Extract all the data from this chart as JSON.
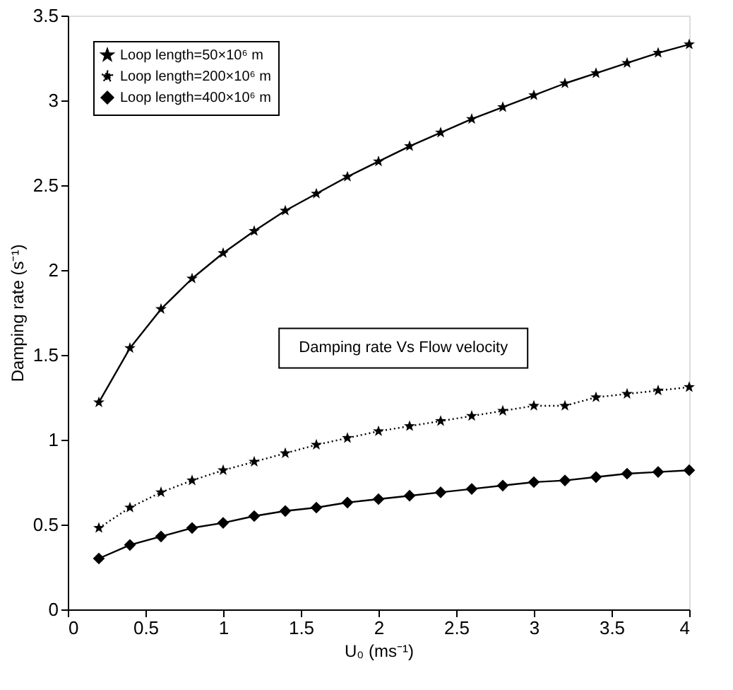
{
  "chart_data": {
    "type": "line",
    "xlabel": "U₀ (ms⁻¹)",
    "ylabel": "Damping rate (s⁻¹)",
    "x": [
      0.2,
      0.4,
      0.6,
      0.8,
      1.0,
      1.2,
      1.4,
      1.6,
      1.8,
      2.0,
      2.2,
      2.4,
      2.6,
      2.8,
      3.0,
      3.2,
      3.4,
      3.6,
      3.8,
      4.0
    ],
    "series": [
      {
        "name": "Loop length=50×10⁶ m",
        "color": "#000000",
        "marker": "star",
        "line_style": "solid",
        "values": [
          1.22,
          1.54,
          1.77,
          1.95,
          2.1,
          2.23,
          2.35,
          2.45,
          2.55,
          2.64,
          2.73,
          2.81,
          2.89,
          2.96,
          3.03,
          3.1,
          3.16,
          3.22,
          3.28,
          3.33
        ]
      },
      {
        "name": "Loop length=200×10⁶ m",
        "color": "#000000",
        "marker": "star",
        "line_style": "dotted",
        "values": [
          0.48,
          0.6,
          0.69,
          0.76,
          0.82,
          0.87,
          0.92,
          0.97,
          1.01,
          1.05,
          1.08,
          1.11,
          1.14,
          1.17,
          1.2,
          1.2,
          1.25,
          1.27,
          1.29,
          1.31
        ]
      },
      {
        "name": "Loop length=400×10⁶ m",
        "color": "#000000",
        "marker": "diamond",
        "line_style": "solid",
        "values": [
          0.3,
          0.38,
          0.43,
          0.48,
          0.51,
          0.55,
          0.58,
          0.6,
          0.63,
          0.65,
          0.67,
          0.69,
          0.71,
          0.73,
          0.75,
          0.76,
          0.78,
          0.8,
          0.81,
          0.82
        ]
      }
    ],
    "annotations": [
      "Damping rate Vs Flow velocity"
    ],
    "xlim": [
      0,
      4
    ],
    "xticks": [
      0,
      0.5,
      1,
      1.5,
      2,
      2.5,
      3,
      3.5,
      4
    ],
    "ylim": [
      0,
      3.5
    ],
    "yticks": [
      0,
      0.5,
      1,
      1.5,
      2,
      2.5,
      3,
      3.5
    ],
    "grid": false,
    "legend": "top left"
  }
}
